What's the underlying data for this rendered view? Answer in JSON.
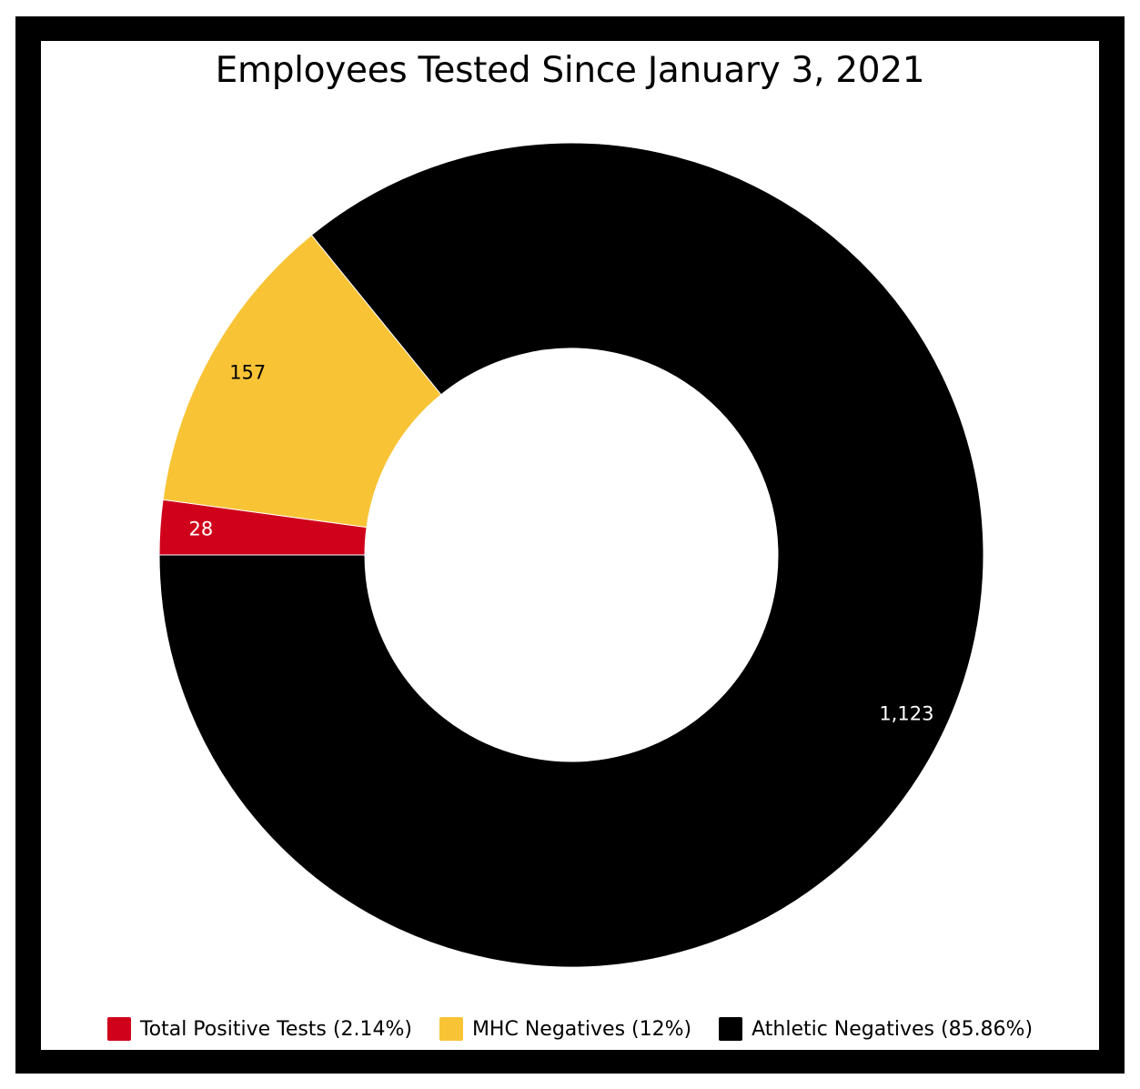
{
  "chart_data": {
    "type": "pie",
    "donut": true,
    "title": "Employees Tested Since January 3, 2021",
    "series": [
      {
        "name": "Total Positive Tests",
        "value": 28,
        "label": "28",
        "legend": "Total Positive Tests (2.14%)",
        "color": "#d0021b",
        "label_color": "#ffffff"
      },
      {
        "name": "MHC Negatives",
        "value": 157,
        "label": "157",
        "legend": "MHC Negatives (12%)",
        "color": "#f8c335",
        "label_color": "#000000"
      },
      {
        "name": "Athletic Negatives",
        "value": 1123,
        "label": "1,123",
        "legend": "Athletic Negatives (85.86%)",
        "color": "#000000",
        "label_color": "#ffffff"
      }
    ],
    "legend_position": "bottom"
  }
}
